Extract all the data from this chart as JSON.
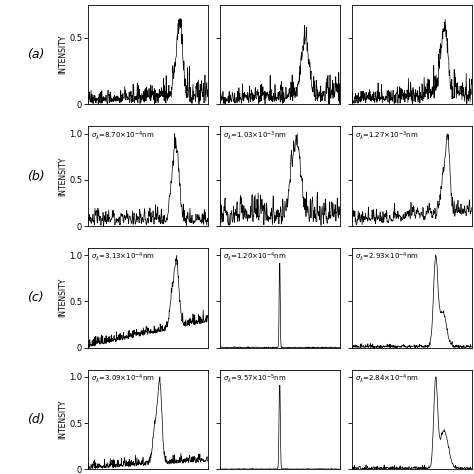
{
  "rows": 4,
  "cols": 3,
  "row_labels": [
    "(a)",
    "(b)",
    "(c)",
    "(d)"
  ],
  "sigma_labels_raw": [
    [
      "",
      "",
      ""
    ],
    [
      "$\\sigma_\\lambda$=8.70×10$^{-4}$nm",
      "$\\sigma_\\lambda$=1.03×10$^{-3}$nm",
      "$\\sigma_\\lambda$=1.27×10$^{-3}$nm"
    ],
    [
      "$\\sigma_\\lambda$=3.13×10$^{-4}$nm",
      "$\\sigma_\\lambda$=1.20×10$^{-4}$nm",
      "$\\sigma_\\lambda$=2.93×10$^{-4}$nm"
    ],
    [
      "$\\sigma_\\lambda$=3.09×10$^{-4}$nm",
      "$\\sigma_\\lambda$=9.57×10$^{-5}$nm",
      "$\\sigma_\\lambda$=2.84×10$^{-4}$nm"
    ]
  ],
  "background_color": "#ffffff",
  "line_color": "#000000",
  "ylabel": "INTENSITY",
  "seed": 42
}
